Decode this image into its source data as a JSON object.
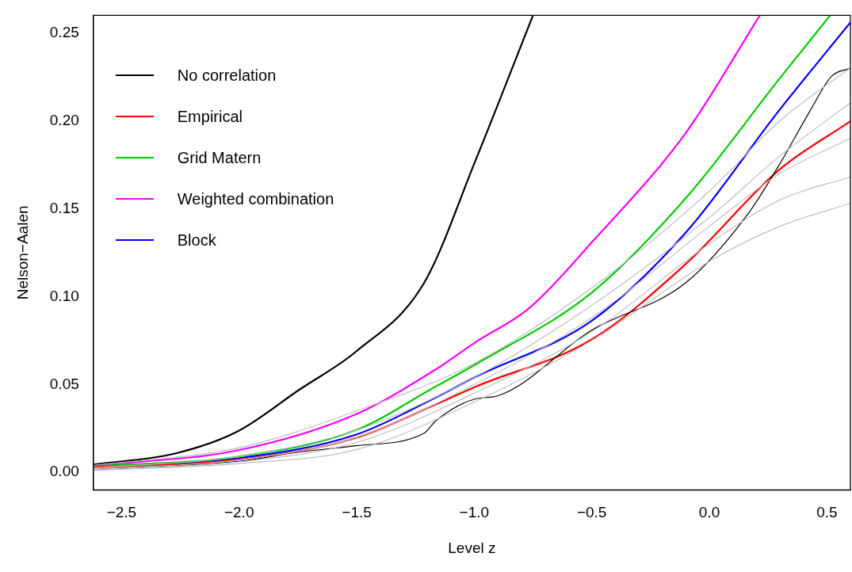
{
  "chart_data": {
    "type": "line",
    "xlabel": "Level z",
    "ylabel": "Nelson−Aalen",
    "xlim": [
      -2.62,
      0.6
    ],
    "ylim": [
      -0.01,
      0.26
    ],
    "xticks": [
      {
        "value": -2.5,
        "label": "−2.5"
      },
      {
        "value": -2,
        "label": "−2.0"
      },
      {
        "value": -1.5,
        "label": "−1.5"
      },
      {
        "value": -1,
        "label": "−1.0"
      },
      {
        "value": -0.5,
        "label": "−0.5"
      },
      {
        "value": 0,
        "label": "0.0"
      },
      {
        "value": 0.5,
        "label": "0.5"
      }
    ],
    "yticks": [
      {
        "value": 0,
        "label": "0.00"
      },
      {
        "value": 0.05,
        "label": "0.05"
      },
      {
        "value": 0.1,
        "label": "0.10"
      },
      {
        "value": 0.15,
        "label": "0.15"
      },
      {
        "value": 0.2,
        "label": "0.20"
      },
      {
        "value": 0.25,
        "label": "0.25"
      }
    ],
    "grid": false,
    "legend": "top left",
    "marker": "none",
    "line_style": "solid",
    "series": [
      {
        "color": "#bebebe",
        "x": [
          -2.62,
          -2.0,
          -1.5,
          -1.0,
          -0.5,
          0.0,
          0.3,
          0.598
        ],
        "values": [
          0.004,
          0.014,
          0.035,
          0.062,
          0.105,
          0.16,
          0.2,
          0.23
        ]
      },
      {
        "color": "#bebebe",
        "x": [
          -2.62,
          -2.0,
          -1.5,
          -1.0,
          -0.5,
          0.0,
          0.3,
          0.598
        ],
        "values": [
          0.001,
          0.005,
          0.013,
          0.04,
          0.075,
          0.12,
          0.14,
          0.153
        ]
      },
      {
        "color": "#bebebe",
        "x": [
          -2.62,
          -2.0,
          -1.5,
          -1.0,
          -0.5,
          0.0,
          0.3,
          0.598
        ],
        "values": [
          0.002,
          0.007,
          0.02,
          0.05,
          0.088,
          0.14,
          0.17,
          0.19
        ]
      },
      {
        "color": "#bebebe",
        "x": [
          -2.62,
          -2.0,
          -1.5,
          -1.0,
          -0.5,
          0.0,
          0.3,
          0.598
        ],
        "values": [
          0.0025,
          0.009,
          0.024,
          0.054,
          0.095,
          0.145,
          0.18,
          0.21
        ]
      },
      {
        "color": "#bebebe",
        "x": [
          -2.62,
          -2.0,
          -1.5,
          -1.0,
          -0.5,
          0.0,
          0.3,
          0.598
        ],
        "values": [
          0.0015,
          0.006,
          0.017,
          0.045,
          0.08,
          0.13,
          0.155,
          0.168
        ]
      },
      {
        "color": "#000000",
        "x": [
          -2.618,
          -2.008,
          -1.742,
          -1.504,
          -1.213,
          -1.162,
          -0.995,
          -0.898,
          -0.499,
          -0.101,
          0.164,
          0.296,
          0.429,
          0.52,
          0.598
        ],
        "values": [
          0.002,
          0.0062,
          0.0116,
          0.0151,
          0.0223,
          0.0295,
          0.0418,
          0.0436,
          0.081,
          0.1078,
          0.147,
          0.1747,
          0.2058,
          0.2254,
          0.2298
        ]
      },
      {
        "name": "No correlation",
        "color": "#000000",
        "x": [
          -2.618,
          -2.273,
          -2.008,
          -1.742,
          -1.504,
          -1.213,
          -0.995,
          -0.75
        ],
        "values": [
          0.0045,
          0.0107,
          0.0232,
          0.0472,
          0.0686,
          0.1078,
          0.1773,
          0.26
        ]
      },
      {
        "name": "Empirical",
        "color": "#ff0000",
        "x": [
          -2.618,
          -2.008,
          -1.504,
          -1.162,
          -0.995,
          -0.499,
          -0.101,
          0.296,
          0.598
        ],
        "values": [
          0.0028,
          0.0071,
          0.0196,
          0.0387,
          0.0487,
          0.0757,
          0.1185,
          0.172,
          0.1996
        ]
      },
      {
        "name": "Grid Matern",
        "color": "#00cd00",
        "x": [
          -2.618,
          -2.008,
          -1.504,
          -1.162,
          -0.995,
          -0.499,
          -0.101,
          0.296,
          0.514
        ],
        "values": [
          0.0034,
          0.0089,
          0.024,
          0.049,
          0.0614,
          0.1024,
          0.1559,
          0.2236,
          0.26
        ]
      },
      {
        "name": "Weighted combination",
        "color": "#ff00ff",
        "x": [
          -2.618,
          -2.008,
          -1.504,
          -1.162,
          -0.995,
          -0.765,
          -0.499,
          -0.101,
          0.215
        ],
        "values": [
          0.0039,
          0.0125,
          0.033,
          0.0587,
          0.074,
          0.0936,
          0.131,
          0.193,
          0.26
        ]
      },
      {
        "name": "Block",
        "color": "#0000ff",
        "x": [
          -2.618,
          -2.008,
          -1.504,
          -1.162,
          -0.995,
          -0.499,
          -0.101,
          0.296,
          0.598
        ],
        "values": [
          0.003,
          0.008,
          0.0214,
          0.0427,
          0.0543,
          0.0864,
          0.1363,
          0.2058,
          0.2557
        ]
      }
    ]
  }
}
